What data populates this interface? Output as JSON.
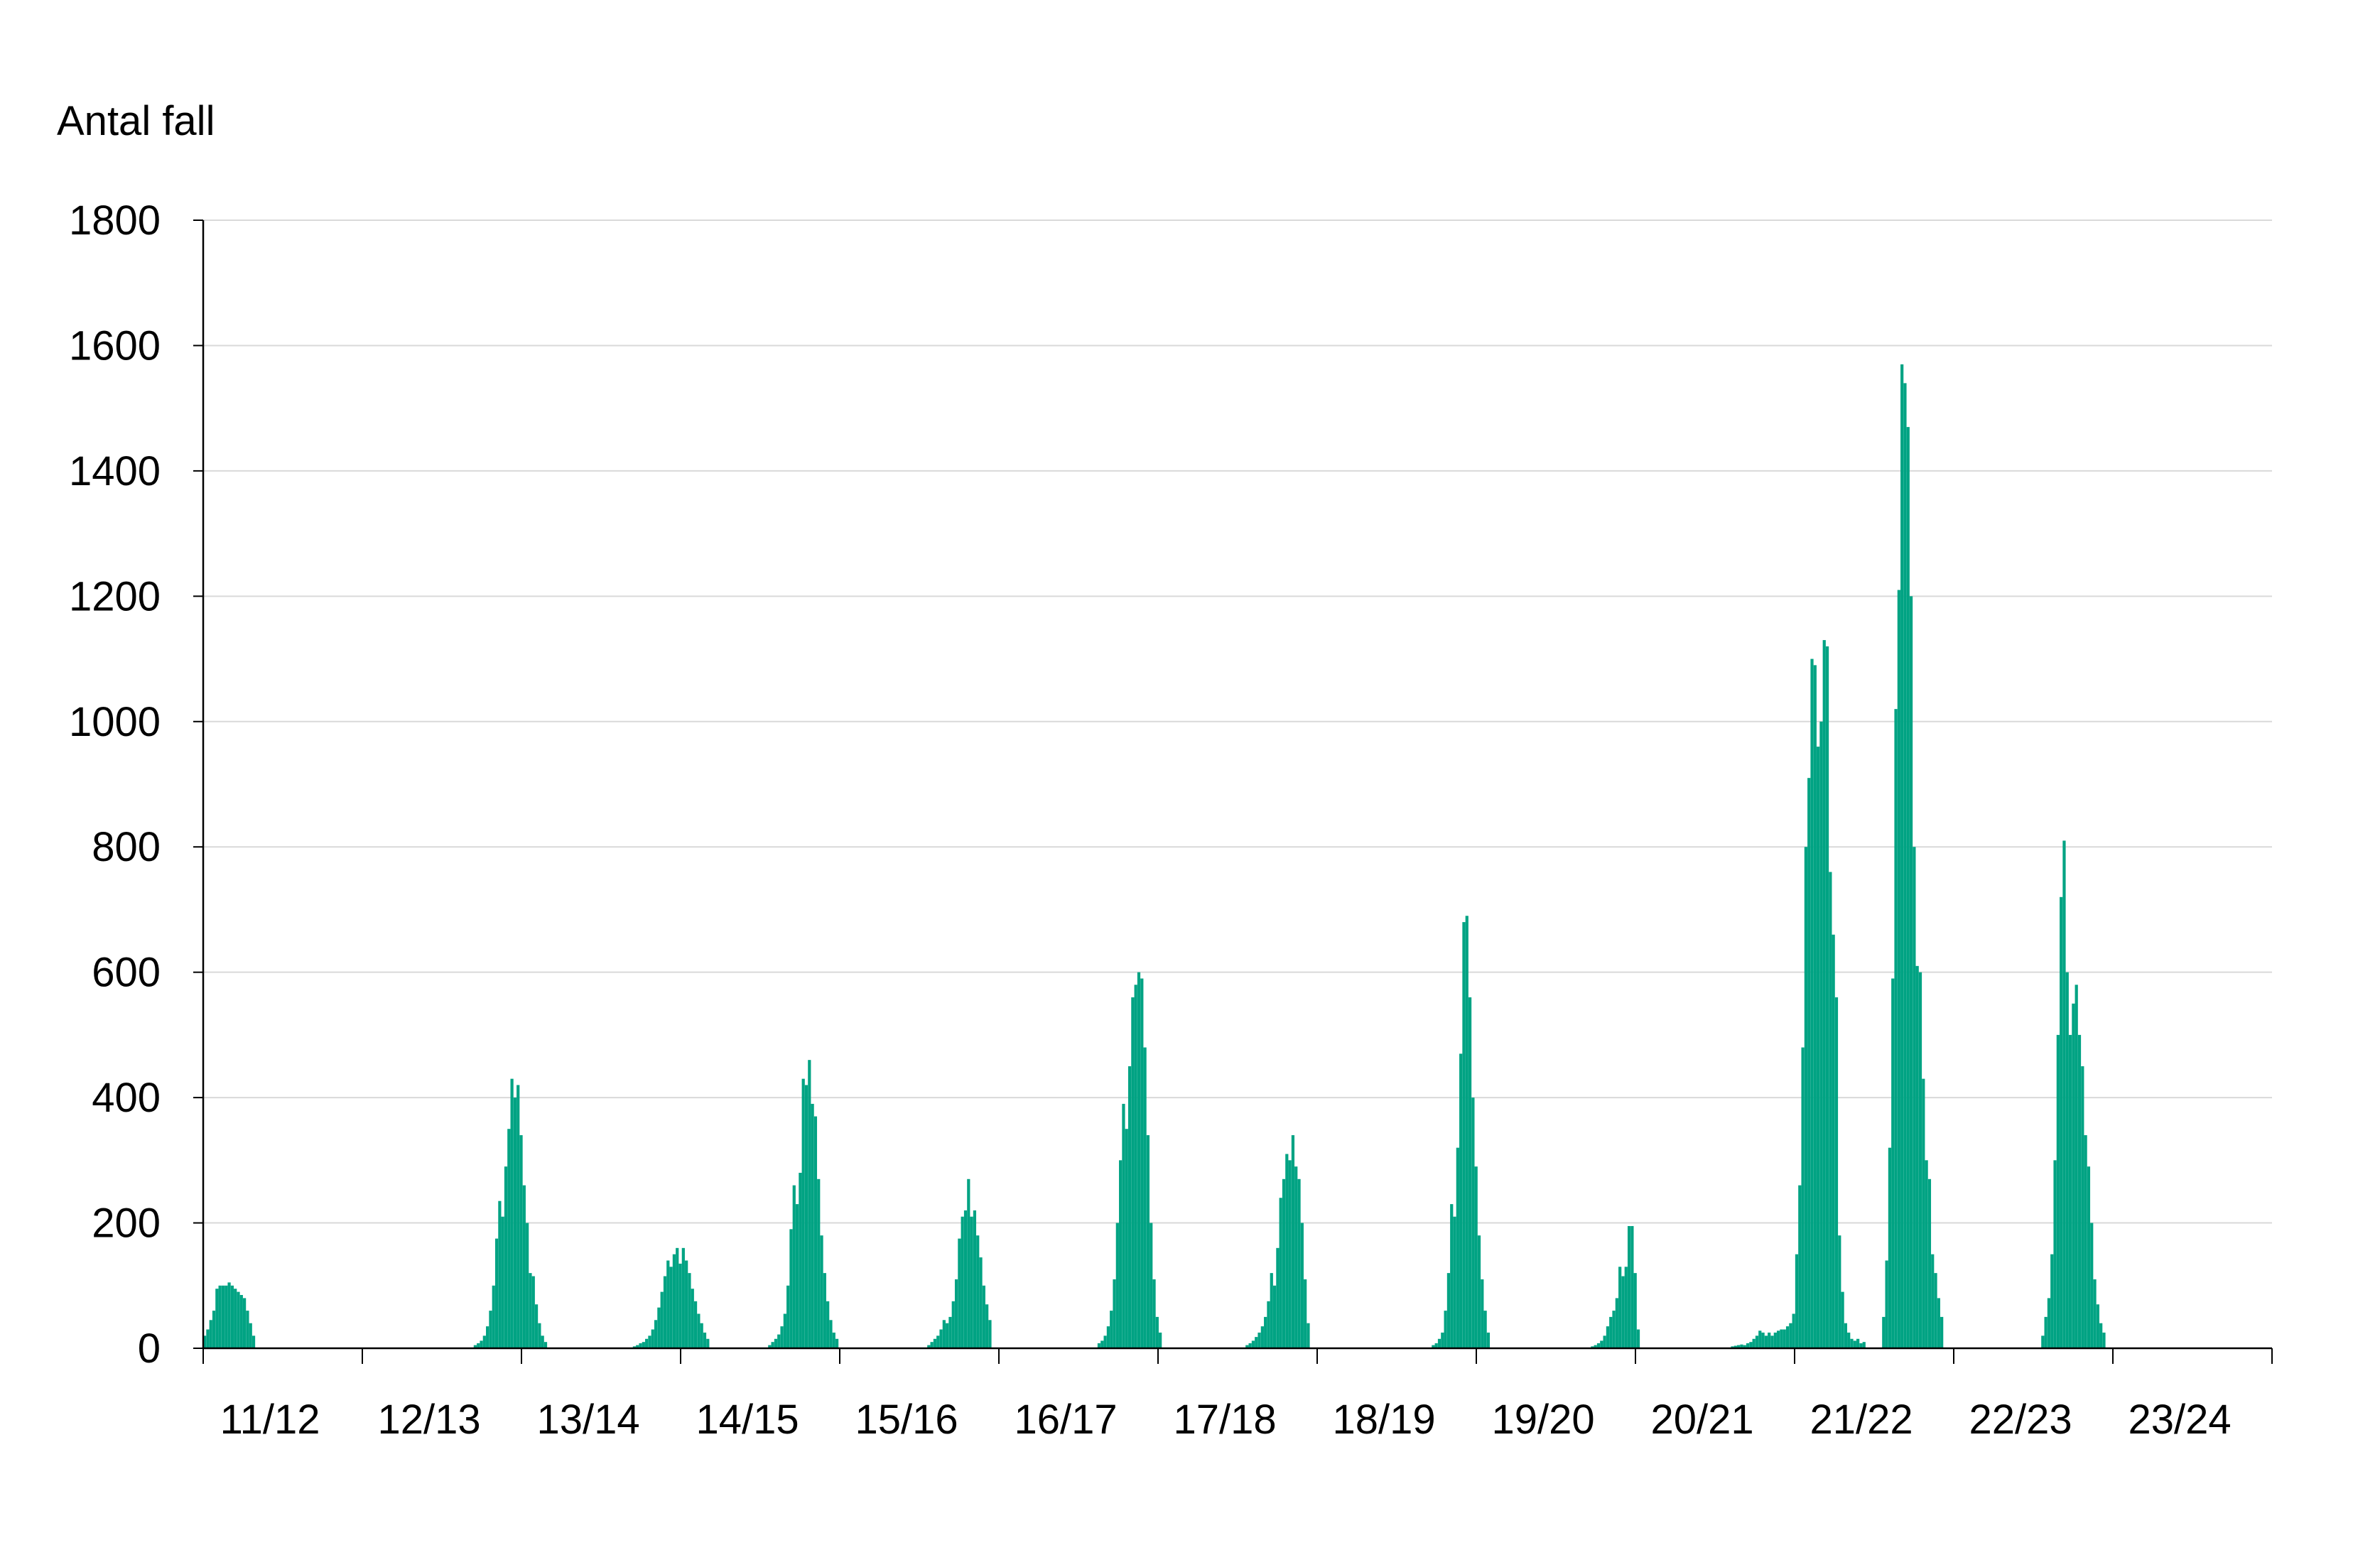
{
  "chart_data": {
    "type": "bar",
    "title": "",
    "ylabel": "Antal fall",
    "xlabel": "",
    "ylim": [
      0,
      1800
    ],
    "yticks": [
      0,
      200,
      400,
      600,
      800,
      1000,
      1200,
      1400,
      1600,
      1800
    ],
    "grid": true,
    "legend": "none",
    "bar_color": "#00a383",
    "seasons": [
      "11/12",
      "12/13",
      "13/14",
      "14/15",
      "15/16",
      "16/17",
      "17/18",
      "18/19",
      "19/20",
      "20/21",
      "21/22",
      "22/23",
      "23/24"
    ],
    "series": [
      {
        "season": "11/12",
        "values": [
          20,
          30,
          45,
          60,
          95,
          100,
          100,
          100,
          105,
          100,
          95,
          90,
          85,
          80,
          60,
          40,
          20
        ]
      },
      {
        "season": "12/13",
        "values": [
          5,
          8,
          12,
          20,
          35,
          60,
          100,
          175,
          235,
          210,
          290,
          350,
          430,
          400,
          420,
          340,
          260,
          200,
          120,
          115,
          70,
          40,
          20,
          10
        ]
      },
      {
        "season": "13/14",
        "values": [
          3,
          5,
          8,
          10,
          15,
          20,
          30,
          45,
          65,
          90,
          115,
          140,
          130,
          150,
          160,
          135,
          160,
          140,
          120,
          95,
          75,
          55,
          40,
          25,
          15
        ]
      },
      {
        "season": "14/15",
        "values": [
          5,
          10,
          15,
          22,
          35,
          55,
          100,
          190,
          260,
          230,
          280,
          430,
          420,
          460,
          390,
          370,
          270,
          180,
          120,
          75,
          45,
          25,
          15
        ]
      },
      {
        "season": "15/16",
        "values": [
          5,
          10,
          15,
          20,
          30,
          45,
          40,
          50,
          75,
          110,
          175,
          210,
          220,
          270,
          210,
          220,
          180,
          145,
          100,
          70,
          45
        ]
      },
      {
        "season": "16/17",
        "values": [
          8,
          12,
          20,
          35,
          60,
          110,
          200,
          300,
          390,
          350,
          450,
          560,
          580,
          600,
          590,
          480,
          340,
          200,
          110,
          50,
          25
        ]
      },
      {
        "season": "17/18",
        "values": [
          5,
          8,
          12,
          18,
          25,
          35,
          50,
          75,
          120,
          100,
          160,
          240,
          270,
          310,
          300,
          340,
          290,
          270,
          200,
          110,
          40
        ]
      },
      {
        "season": "18/19",
        "values": [
          5,
          8,
          15,
          25,
          60,
          120,
          230,
          210,
          320,
          470,
          680,
          690,
          560,
          400,
          290,
          180,
          110,
          60,
          25
        ]
      },
      {
        "season": "19/20",
        "values": [
          3,
          5,
          8,
          12,
          20,
          35,
          50,
          60,
          80,
          130,
          115,
          130,
          195,
          195,
          120,
          30
        ]
      },
      {
        "season": "20/21",
        "values": [
          3,
          4,
          5,
          6,
          5,
          8,
          10,
          15,
          20,
          28,
          25,
          20,
          25,
          20,
          25,
          28,
          30,
          30,
          35,
          40,
          55,
          150,
          260,
          480,
          800,
          910,
          1100,
          1090,
          960,
          1000,
          1130,
          1120,
          760,
          660,
          560,
          180,
          90,
          40,
          25,
          15,
          12,
          15,
          8,
          10
        ]
      },
      {
        "season": "22/23",
        "values": [
          50,
          140,
          320,
          590,
          1020,
          1210,
          1570,
          1540,
          1470,
          1200,
          800,
          610,
          600,
          430,
          300,
          270,
          150,
          120,
          80,
          50
        ]
      },
      {
        "season": "23/24",
        "values": [
          20,
          50,
          80,
          150,
          300,
          500,
          720,
          810,
          600,
          500,
          550,
          580,
          500,
          450,
          340,
          290,
          200,
          110,
          70,
          40,
          25
        ]
      }
    ]
  }
}
